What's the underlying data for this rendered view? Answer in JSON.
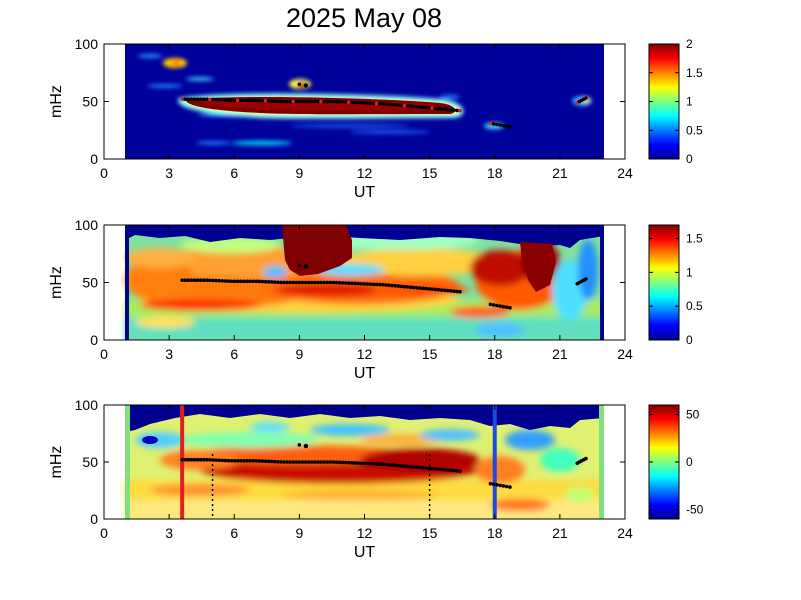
{
  "title": "2025 May 08",
  "chart_data": [
    {
      "type": "heatmap",
      "xlabel": "UT",
      "ylabel": "mHz",
      "xlim": [
        0,
        24
      ],
      "ylim": [
        0,
        100
      ],
      "xticks": [
        "0",
        "3",
        "6",
        "9",
        "12",
        "15",
        "18",
        "21",
        "24"
      ],
      "yticks": [
        "0",
        "50",
        "100"
      ],
      "colorbar": {
        "range": [
          0,
          2
        ],
        "ticks": [
          "0",
          "0.5",
          "1",
          "1.5",
          "2"
        ]
      },
      "data_extent_ut": [
        1.0,
        23.0
      ],
      "detected_frequency": [
        {
          "ut": [
            3.6,
            16.4
          ],
          "mhz": [
            52,
            52,
            51,
            51,
            50,
            50,
            50,
            49,
            48,
            46,
            44,
            42
          ]
        },
        {
          "ut": [
            17.8,
            18.7
          ],
          "mhz": [
            31,
            30,
            29,
            28
          ]
        },
        {
          "ut": [
            21.8,
            22.2
          ],
          "mhz": [
            49,
            51,
            53
          ]
        }
      ]
    },
    {
      "type": "heatmap",
      "xlabel": "UT",
      "ylabel": "mHz",
      "xlim": [
        0,
        24
      ],
      "ylim": [
        0,
        100
      ],
      "xticks": [
        "0",
        "3",
        "6",
        "9",
        "12",
        "15",
        "18",
        "21",
        "24"
      ],
      "yticks": [
        "0",
        "50",
        "100"
      ],
      "colorbar": {
        "range": [
          0,
          1.7
        ],
        "ticks": [
          "0",
          "0.5",
          "1",
          "1.5"
        ]
      },
      "data_extent_ut": [
        1.0,
        23.0
      ],
      "detected_frequency": [
        {
          "ut": [
            3.6,
            16.4
          ],
          "mhz": [
            52,
            52,
            51,
            51,
            50,
            50,
            50,
            49,
            48,
            46,
            44,
            42
          ]
        },
        {
          "ut": [
            17.8,
            18.7
          ],
          "mhz": [
            31,
            30,
            29,
            28
          ]
        },
        {
          "ut": [
            21.8,
            22.2
          ],
          "mhz": [
            49,
            51,
            53
          ]
        }
      ]
    },
    {
      "type": "heatmap",
      "xlabel": "UT",
      "ylabel": "mHz",
      "xlim": [
        0,
        24
      ],
      "ylim": [
        0,
        100
      ],
      "xticks": [
        "0",
        "3",
        "6",
        "9",
        "12",
        "15",
        "18",
        "21",
        "24"
      ],
      "yticks": [
        "0",
        "50",
        "100"
      ],
      "colorbar": {
        "range": [
          -60,
          60
        ],
        "ticks": [
          "-50",
          "0",
          "50"
        ]
      },
      "data_extent_ut": [
        1.0,
        23.0
      ],
      "markers": [
        {
          "ut": 3.6,
          "style": "solid",
          "color": "#e02020"
        },
        {
          "ut": 18.0,
          "style": "solid",
          "color": "#1f4bdc"
        },
        {
          "ut": 5.0,
          "style": "dotted",
          "color": "#000000"
        },
        {
          "ut": 15.0,
          "style": "dotted",
          "color": "#000000"
        }
      ],
      "detected_frequency": [
        {
          "ut": [
            3.6,
            16.4
          ],
          "mhz": [
            52,
            52,
            51,
            51,
            50,
            50,
            50,
            49,
            48,
            46,
            44,
            42
          ]
        },
        {
          "ut": [
            17.8,
            18.7
          ],
          "mhz": [
            31,
            30,
            29,
            28
          ]
        },
        {
          "ut": [
            21.8,
            22.2
          ],
          "mhz": [
            49,
            51,
            53
          ]
        }
      ]
    }
  ]
}
